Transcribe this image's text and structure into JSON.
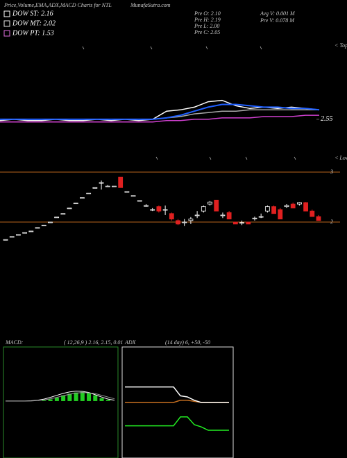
{
  "header": {
    "title": "Price,Volume,EMA,ADX,MACD Charts for NTL",
    "site": "MunafaSutra.com",
    "dow": [
      {
        "label": "DOW ST: 2.16",
        "color": "#ffffff"
      },
      {
        "label": "DOW MT: 2.02",
        "color": "#e8e8e8"
      },
      {
        "label": "DOW PT: 1.53",
        "color": "#e070e0"
      }
    ],
    "pre": [
      "Pre   O: 2.10",
      "Pre   H: 2.19",
      "Pre   L: 2.00",
      "Pre   C: 2.05"
    ],
    "volume": [
      "Avg V: 0.001 M",
      "Pre   V: 0.078 M"
    ]
  },
  "chart_data": [
    {
      "type": "line",
      "annotations": [
        "< Tops",
        "< Lows"
      ],
      "ylim": [
        2.2,
        3.125
      ],
      "yticks": [
        2.55
      ],
      "series": [
        {
          "color": "#aaaaaa",
          "values": [
            2.55,
            2.55,
            2.55,
            2.55,
            2.55,
            2.55,
            2.55,
            2.55,
            2.55,
            2.55,
            2.55,
            2.55,
            2.56,
            2.57,
            2.59,
            2.6,
            2.61,
            2.61,
            2.62,
            2.62,
            2.62,
            2.62,
            2.62,
            2.62
          ]
        },
        {
          "color": "#d040d0",
          "values": [
            2.53,
            2.53,
            2.53,
            2.53,
            2.53,
            2.53,
            2.53,
            2.53,
            2.53,
            2.53,
            2.53,
            2.53,
            2.54,
            2.54,
            2.55,
            2.55,
            2.56,
            2.56,
            2.56,
            2.57,
            2.57,
            2.57,
            2.58,
            2.58
          ]
        },
        {
          "color": "#ffffff",
          "values": [
            2.54,
            2.55,
            2.54,
            2.54,
            2.55,
            2.54,
            2.54,
            2.55,
            2.54,
            2.55,
            2.54,
            2.55,
            2.61,
            2.62,
            2.64,
            2.68,
            2.69,
            2.65,
            2.63,
            2.64,
            2.63,
            2.64,
            2.63,
            2.62
          ]
        },
        {
          "color": "#1f5fff",
          "values": [
            2.55,
            2.55,
            2.55,
            2.55,
            2.55,
            2.55,
            2.55,
            2.55,
            2.55,
            2.55,
            2.55,
            2.55,
            2.56,
            2.58,
            2.61,
            2.64,
            2.66,
            2.66,
            2.65,
            2.64,
            2.64,
            2.63,
            2.63,
            2.62
          ]
        }
      ]
    },
    {
      "type": "candlestick",
      "ylim": [
        2,
        3
      ],
      "yticks": [
        2,
        3
      ],
      "grid_color": "#b8651b",
      "up_color": "#ffffff",
      "down_color": "#e02020",
      "open": [
        1.65,
        1.71,
        1.75,
        1.79,
        1.82,
        1.89,
        1.94,
        2.0,
        2.1,
        2.17,
        2.28,
        2.38,
        2.49,
        2.58,
        2.69,
        2.79,
        2.72,
        2.72,
        2.9,
        2.61,
        2.53,
        2.43,
        2.33,
        2.25,
        2.31,
        2.25,
        2.17,
        2.03,
        2.0,
        2.03,
        2.14,
        2.22,
        2.36,
        2.44,
        2.14,
        2.19,
        2.0,
        1.99,
        2.0,
        2.08,
        2.11,
        2.22,
        2.31,
        2.25,
        2.31,
        2.36,
        2.36,
        2.39,
        2.22,
        2.11
      ],
      "high": [
        1.65,
        1.71,
        1.75,
        1.79,
        1.82,
        1.89,
        1.94,
        2.0,
        2.1,
        2.17,
        2.28,
        2.38,
        2.49,
        2.58,
        2.69,
        2.83,
        2.74,
        2.72,
        2.9,
        2.61,
        2.53,
        2.43,
        2.36,
        2.28,
        2.33,
        2.33,
        2.19,
        2.06,
        2.06,
        2.1,
        2.22,
        2.33,
        2.42,
        2.44,
        2.19,
        2.22,
        2.0,
        2.03,
        2.0,
        2.11,
        2.17,
        2.33,
        2.33,
        2.28,
        2.36,
        2.39,
        2.4,
        2.4,
        2.25,
        2.14
      ],
      "low": [
        1.65,
        1.71,
        1.75,
        1.79,
        1.82,
        1.89,
        1.94,
        2.0,
        2.1,
        2.17,
        2.28,
        2.38,
        2.49,
        2.58,
        2.69,
        2.65,
        2.72,
        2.72,
        2.69,
        2.61,
        2.53,
        2.43,
        2.31,
        2.22,
        2.19,
        2.14,
        2.03,
        1.94,
        1.92,
        1.96,
        2.08,
        2.19,
        2.33,
        2.22,
        2.08,
        2.06,
        1.96,
        1.94,
        1.96,
        2.03,
        2.08,
        2.19,
        2.17,
        2.06,
        2.28,
        2.28,
        2.33,
        2.22,
        2.11,
        2.03
      ],
      "close": [
        1.65,
        1.71,
        1.75,
        1.79,
        1.82,
        1.89,
        1.94,
        2.0,
        2.1,
        2.17,
        2.28,
        2.38,
        2.49,
        2.58,
        2.69,
        2.79,
        2.72,
        2.72,
        2.69,
        2.61,
        2.53,
        2.43,
        2.33,
        2.25,
        2.22,
        2.25,
        2.06,
        1.96,
        2.0,
        2.06,
        2.14,
        2.31,
        2.4,
        2.22,
        2.14,
        2.06,
        1.96,
        1.99,
        1.96,
        2.08,
        2.11,
        2.31,
        2.17,
        2.06,
        2.33,
        2.28,
        2.39,
        2.22,
        2.11,
        2.03
      ]
    },
    {
      "type": "macd",
      "label": "MACD:",
      "params": "( 12,26,9 ) 2.16, 2.15, 0.01",
      "ylim": [
        -0.2,
        0.19
      ],
      "histogram_color": "#22cc22",
      "histogram": [
        0,
        0,
        0,
        0,
        0,
        0,
        0.002,
        0.006,
        0.012,
        0.02,
        0.026,
        0.03,
        0.032,
        0.028,
        0.02,
        0.01,
        0.004,
        0
      ],
      "series": [
        {
          "color": "#ffffff",
          "values": [
            0,
            0,
            0,
            0,
            0.001,
            0.003,
            0.007,
            0.013,
            0.02,
            0.027,
            0.032,
            0.035,
            0.034,
            0.03,
            0.022,
            0.014,
            0.007,
            0.003
          ]
        },
        {
          "color": "#999999",
          "values": [
            0,
            0,
            0,
            0,
            0,
            0.002,
            0.004,
            0.008,
            0.013,
            0.019,
            0.024,
            0.028,
            0.03,
            0.029,
            0.026,
            0.02,
            0.014,
            0.008
          ]
        }
      ]
    },
    {
      "type": "line",
      "label": "ADX",
      "params": "(14  day) 6, +50, -50",
      "ylim": [
        0,
        100
      ],
      "series": [
        {
          "color": "#c87020",
          "values": [
            50,
            50,
            50,
            50,
            50,
            50,
            50,
            50,
            52,
            52,
            51,
            50,
            50,
            50,
            50,
            50
          ]
        },
        {
          "color": "#ffffff",
          "values": [
            64,
            64,
            64,
            64,
            64,
            64,
            64,
            64,
            56,
            55,
            52,
            50,
            50,
            50,
            50,
            50
          ]
        },
        {
          "color": "#22ee22",
          "values": [
            29,
            29,
            29,
            29,
            29,
            29,
            29,
            29,
            37,
            37,
            30,
            28,
            25,
            25,
            25,
            25
          ]
        }
      ]
    }
  ]
}
